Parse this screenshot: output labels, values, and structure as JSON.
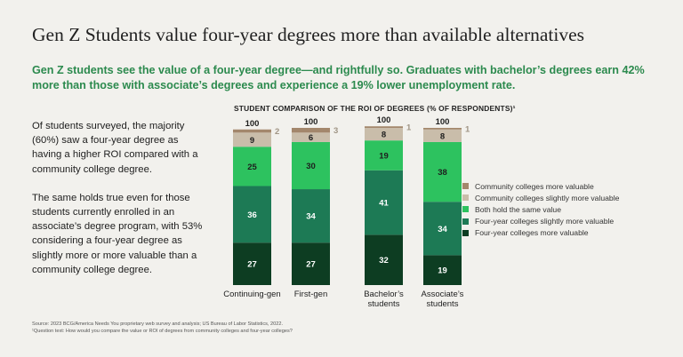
{
  "title": "Gen Z Students value four-year degrees more than available alternatives",
  "subtitle": "Gen Z students see the value of a four-year degree—and rightfully so. Graduates with bachelor’s degrees earn 42% more than those with associate’s degrees and experience a 19% lower unemployment rate.",
  "body": {
    "p1": "Of students surveyed, the majority (60%) saw a four-year degree as having a higher ROI compared with a community college degree.",
    "p2": "The same holds true even for those students currently enrolled in an associate’s degree program, with 53% considering a four-year degree as slightly more or more valuable than a community college degree."
  },
  "source": {
    "line1": "Source: 2023 BCG/America Needs You proprietary web survey and analysis; US Bureau of Labor Statistics, 2022.",
    "line2": "¹Question text: How would you compare the value or ROI of degrees from community colleges and four-year colleges?"
  },
  "chart_data": {
    "type": "bar",
    "stacked": true,
    "title": "STUDENT COMPARISON OF THE ROI OF DEGREES (% OF RESPONDENTS)¹",
    "categories": [
      "Continuing-gen",
      "First-gen",
      "Bachelor’s students",
      "Associate’s students"
    ],
    "totals": [
      100,
      100,
      100,
      100
    ],
    "ylim": [
      0,
      100
    ],
    "grid": false,
    "legend_position": "right",
    "series": [
      {
        "name": "Four-year colleges more valuable",
        "color": "#0d3d22",
        "values": [
          27,
          27,
          32,
          19
        ]
      },
      {
        "name": "Four-year colleges slightly more valuable",
        "color": "#1d7a55",
        "values": [
          36,
          34,
          41,
          34
        ]
      },
      {
        "name": "Both hold the same value",
        "color": "#2dc25f",
        "values": [
          25,
          30,
          19,
          38
        ]
      },
      {
        "name": "Community colleges slightly more valuable",
        "color": "#c9bdaa",
        "values": [
          9,
          6,
          8,
          8
        ]
      },
      {
        "name": "Community colleges more valuable",
        "color": "#a3876c",
        "values": [
          2,
          3,
          1,
          1
        ]
      }
    ]
  }
}
